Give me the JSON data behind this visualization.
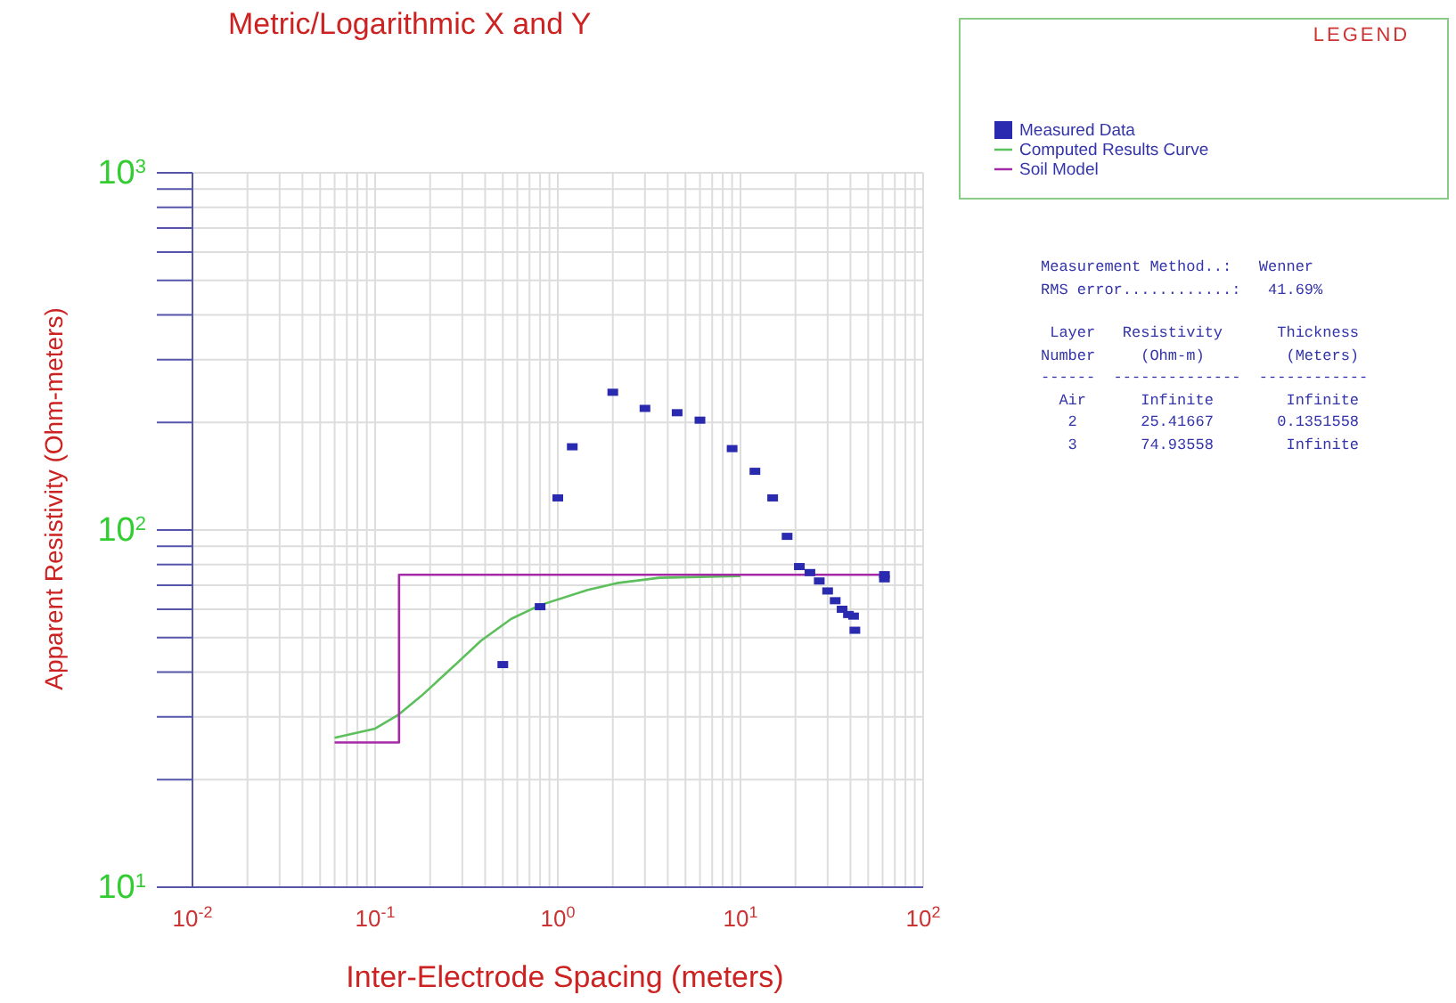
{
  "chart_data": {
    "type": "scatter",
    "title": "Metric/Logarithmic X and Y",
    "xlabel": "Inter-Electrode Spacing (meters)",
    "ylabel": "Apparent Resistivity (Ohm-meters)",
    "log": "xy",
    "grid": true,
    "legend": "right",
    "legend_title": "LEGEND",
    "xlim": [
      0.01,
      100
    ],
    "ylim": [
      10,
      1000
    ],
    "xticks": [
      {
        "value": 0.01,
        "label": "10$^{-2}$"
      },
      {
        "value": 0.02,
        "label": null
      },
      {
        "value": 0.03,
        "label": null
      },
      {
        "value": 0.04,
        "label": null
      },
      {
        "value": 0.05,
        "label": null
      },
      {
        "value": 0.06,
        "label": null
      },
      {
        "value": 0.07,
        "label": null
      },
      {
        "value": 0.08,
        "label": null
      },
      {
        "value": 0.09,
        "label": null
      },
      {
        "value": 0.1,
        "label": "10$^{-1}$"
      },
      {
        "value": 0.2,
        "label": null
      },
      {
        "value": 0.3,
        "label": null
      },
      {
        "value": 0.4,
        "label": null
      },
      {
        "value": 0.5,
        "label": null
      },
      {
        "value": 0.6,
        "label": null
      },
      {
        "value": 0.7,
        "label": null
      },
      {
        "value": 0.8,
        "label": null
      },
      {
        "value": 0.9,
        "label": null
      },
      {
        "value": 1,
        "label": "10$^{0}$"
      },
      {
        "value": 2,
        "label": null
      },
      {
        "value": 3,
        "label": null
      },
      {
        "value": 4,
        "label": null
      },
      {
        "value": 5,
        "label": null
      },
      {
        "value": 6,
        "label": null
      },
      {
        "value": 7,
        "label": null
      },
      {
        "value": 8,
        "label": null
      },
      {
        "value": 9,
        "label": null
      },
      {
        "value": 10,
        "label": "10$^{1}$"
      },
      {
        "value": 20,
        "label": null
      },
      {
        "value": 30,
        "label": null
      },
      {
        "value": 40,
        "label": null
      },
      {
        "value": 50,
        "label": null
      },
      {
        "value": 60,
        "label": null
      },
      {
        "value": 70,
        "label": null
      },
      {
        "value": 80,
        "label": null
      },
      {
        "value": 90,
        "label": null
      },
      {
        "value": 100,
        "label": "10$^{2}$"
      }
    ],
    "yticks": [
      {
        "value": 10,
        "label": "10$^{1}$"
      },
      {
        "value": 20,
        "label": null
      },
      {
        "value": 30,
        "label": null
      },
      {
        "value": 40,
        "label": null
      },
      {
        "value": 50,
        "label": null
      },
      {
        "value": 60,
        "label": null
      },
      {
        "value": 70,
        "label": null
      },
      {
        "value": 80,
        "label": null
      },
      {
        "value": 90,
        "label": null
      },
      {
        "value": 100,
        "label": "10$^{2}$"
      },
      {
        "value": 200,
        "label": null
      },
      {
        "value": 300,
        "label": null
      },
      {
        "value": 400,
        "label": null
      },
      {
        "value": 500,
        "label": null
      },
      {
        "value": 600,
        "label": null
      },
      {
        "value": 700,
        "label": null
      },
      {
        "value": 800,
        "label": null
      },
      {
        "value": 900,
        "label": null
      },
      {
        "value": 1000,
        "label": "10$^{3}$"
      }
    ],
    "series": [
      {
        "name": "Measured Data",
        "marker": "square",
        "color": "#2a2ab0",
        "x": [
          0.5,
          0.8,
          1.0,
          1.2,
          2.0,
          3.0,
          4.5,
          6.0,
          9.0,
          12,
          15,
          18,
          21,
          24,
          27,
          30,
          33,
          36,
          39,
          41.6,
          42.3,
          61.4,
          61.4
        ],
        "values": [
          42,
          61,
          123,
          171,
          243,
          219,
          213,
          203,
          169,
          146,
          123,
          96,
          79,
          76,
          72,
          67.5,
          63.4,
          60,
          58,
          57.4,
          52.4,
          75,
          73
        ]
      },
      {
        "name": "Computed Results Curve",
        "type": "line",
        "marker": "none",
        "color": "#5cbf5c",
        "x": [
          0.06,
          0.1,
          0.133,
          0.18,
          0.243,
          0.38,
          0.556,
          0.8,
          1.46,
          2.1,
          3.6,
          10
        ],
        "values": [
          26.2,
          27.8,
          30.3,
          34.4,
          39.6,
          49,
          56.4,
          61.6,
          68,
          71,
          73.5,
          74.3
        ]
      },
      {
        "name": "Soil Model",
        "type": "line",
        "marker": "none",
        "color": "#a52aa5",
        "x": [
          0.06,
          0.1351558,
          0.1351558,
          61.4
        ],
        "values": [
          25.41667,
          25.41667,
          74.93558,
          74.93558
        ]
      }
    ],
    "annotations": [
      "Measurement Method..:   Wenner",
      "RMS error............:   41.69%",
      " Layer   Resistivity      Thickness",
      "Number     (Ohm-m)         (Meters)",
      "------  --------------  ------------",
      "  Air      Infinite        Infinite",
      "   2       25.41667       0.1351558",
      "   3       74.93558        Infinite"
    ]
  }
}
